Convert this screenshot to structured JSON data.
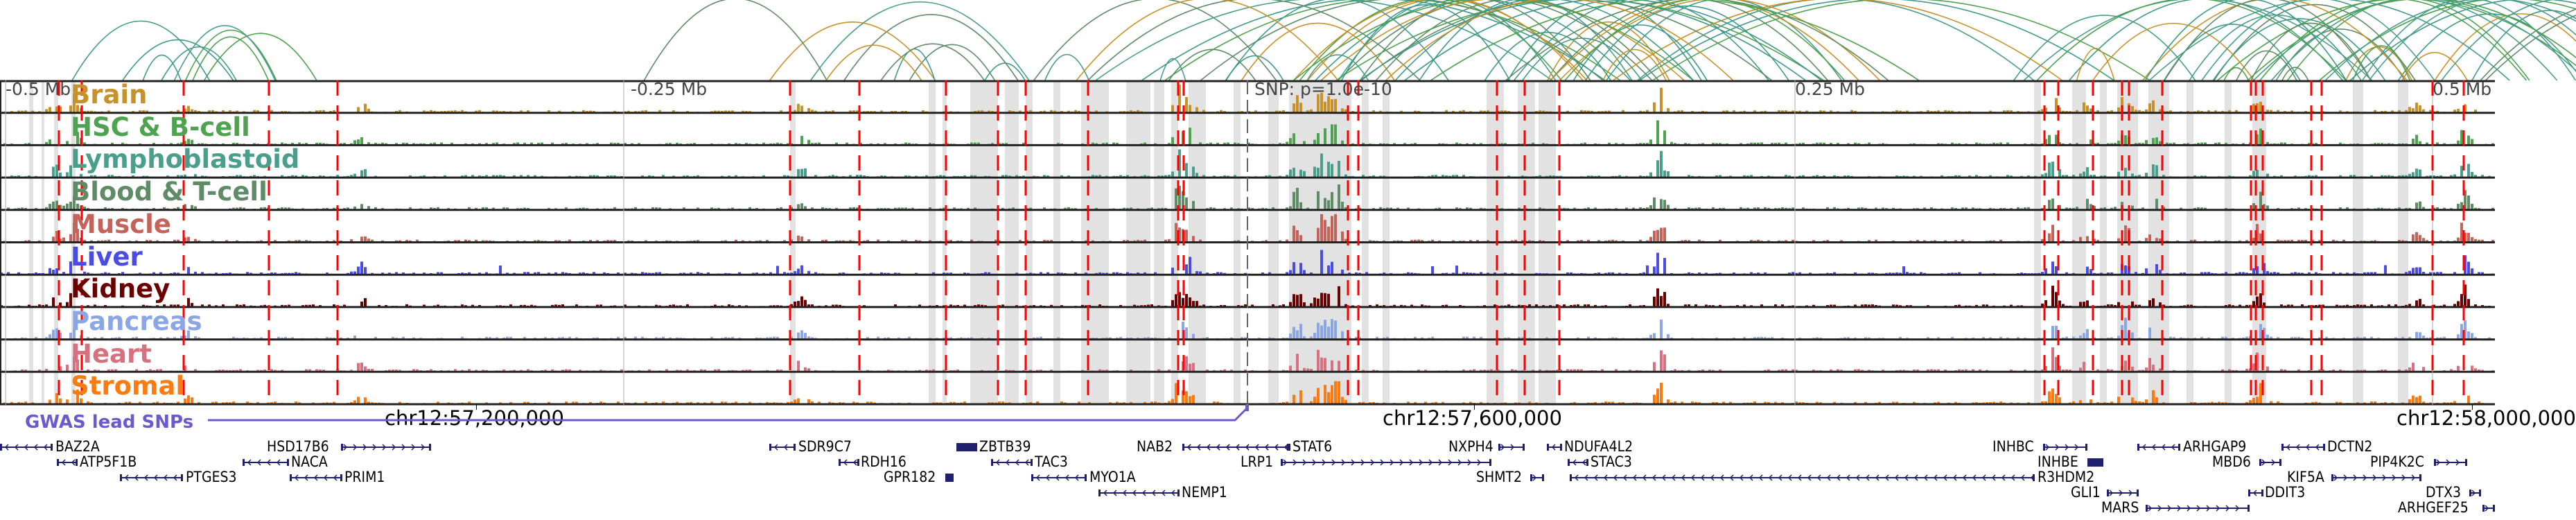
{
  "axis": {
    "labels": [
      "-0.5 Mb",
      "-0.25 Mb",
      "SNP: p=1.0e-10",
      "0.25 Mb",
      "0.5 Mb"
    ]
  },
  "tracks": [
    {
      "name": "Brain",
      "color": "#c8922a"
    },
    {
      "name": "HSC & B-cell",
      "color": "#4fa24f"
    },
    {
      "name": "Lymphoblastoid",
      "color": "#4a9e8c"
    },
    {
      "name": "Blood & T-cell",
      "color": "#5f8c66"
    },
    {
      "name": "Muscle",
      "color": "#c5625a"
    },
    {
      "name": "Liver",
      "color": "#4b4ce6"
    },
    {
      "name": "Kidney",
      "color": "#6b0000"
    },
    {
      "name": "Pancreas",
      "color": "#8aa6e4"
    },
    {
      "name": "Heart",
      "color": "#d7717f"
    },
    {
      "name": "Stromal",
      "color": "#f97b12"
    }
  ],
  "coordinates": [
    "chr12:57,200,000",
    "chr12:57,600,000",
    "chr12:58,000,000"
  ],
  "gwas": {
    "label": "GWAS lead SNPs",
    "color": "#6a5acd"
  },
  "genes": [
    {
      "name": "BAZ2A"
    },
    {
      "name": "HSD17B6"
    },
    {
      "name": "SDR9C7"
    },
    {
      "name": "ZBTB39"
    },
    {
      "name": "NAB2"
    },
    {
      "name": "STAT6"
    },
    {
      "name": "NXPH4"
    },
    {
      "name": "NDUFA4L2"
    },
    {
      "name": "INHBC"
    },
    {
      "name": "ARHGAP9"
    },
    {
      "name": "DCTN2"
    },
    {
      "name": "ATP5F1B"
    },
    {
      "name": "NACA"
    },
    {
      "name": "RDH16"
    },
    {
      "name": "TAC3"
    },
    {
      "name": "LRP1"
    },
    {
      "name": "STAC3"
    },
    {
      "name": "INHBE"
    },
    {
      "name": "MBD6"
    },
    {
      "name": "PIP4K2C"
    },
    {
      "name": "PTGES3"
    },
    {
      "name": "PRIM1"
    },
    {
      "name": "GPR182"
    },
    {
      "name": "MYO1A"
    },
    {
      "name": "SHMT2"
    },
    {
      "name": "R3HDM2"
    },
    {
      "name": "KIF5A"
    },
    {
      "name": "NEMP1"
    },
    {
      "name": "GLI1"
    },
    {
      "name": "DDIT3"
    },
    {
      "name": "DTX3"
    },
    {
      "name": "MARS"
    },
    {
      "name": "ARHGEF25"
    }
  ],
  "colors": {
    "gene": "#1f1f6e",
    "snp_line": "#ff0000",
    "highlight": "#e2e2e2"
  }
}
